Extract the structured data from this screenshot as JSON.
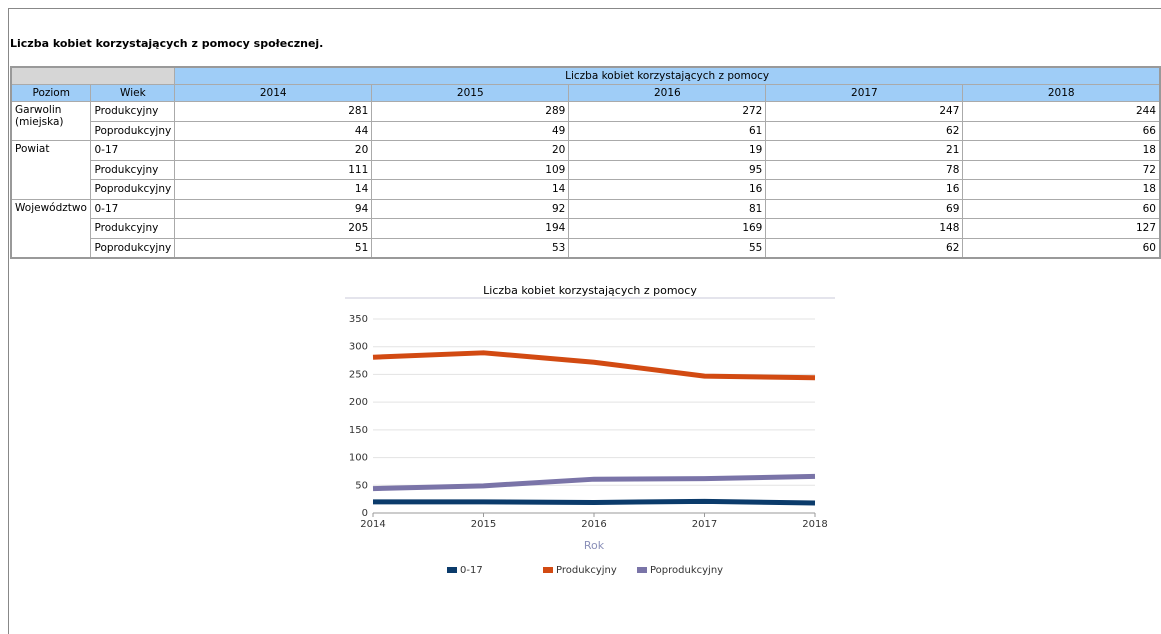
{
  "title": "Liczba kobiet korzystających z pomocy społecznej.",
  "table": {
    "headers": [
      "Poziom",
      "Wiek"
    ],
    "group_header": "Liczba kobiet korzystających z pomocy",
    "years": [
      "2014",
      "2015",
      "2016",
      "2017",
      "2018"
    ],
    "groups": [
      {
        "label": "Garwolin (miejska)",
        "rows": [
          {
            "age": "Produkcyjny",
            "values": [
              281,
              289,
              272,
              247,
              244
            ]
          },
          {
            "age": "Poprodukcyjny",
            "values": [
              44,
              49,
              61,
              62,
              66
            ]
          }
        ]
      },
      {
        "label": "Powiat",
        "rows": [
          {
            "age": "0-17",
            "values": [
              20,
              20,
              19,
              21,
              18
            ]
          },
          {
            "age": "Produkcyjny",
            "values": [
              111,
              109,
              95,
              78,
              72
            ]
          },
          {
            "age": "Poprodukcyjny",
            "values": [
              14,
              14,
              16,
              16,
              18
            ]
          }
        ]
      },
      {
        "label": "Województwo",
        "rows": [
          {
            "age": "0-17",
            "values": [
              94,
              92,
              81,
              69,
              60
            ]
          },
          {
            "age": "Produkcyjny",
            "values": [
              205,
              194,
              169,
              148,
              127
            ]
          },
          {
            "age": "Poprodukcyjny",
            "values": [
              51,
              53,
              55,
              62,
              60
            ]
          }
        ]
      }
    ]
  },
  "chart_data": {
    "type": "line",
    "title": "Liczba kobiet korzystających z pomocy",
    "x_label": "Rok",
    "x": [
      2014,
      2015,
      2016,
      2017,
      2018
    ],
    "xlim": [
      2014,
      2018
    ],
    "xticks": [
      2014,
      2015,
      2016,
      2017,
      2018
    ],
    "ylim": [
      0,
      350
    ],
    "yticks": [
      0,
      50,
      100,
      150,
      200,
      250,
      300,
      350
    ],
    "grid": true,
    "legend": "bottom",
    "series": [
      {
        "name": "0-17",
        "color": "#0b3b6b",
        "values": [
          20,
          20,
          19,
          21,
          18
        ]
      },
      {
        "name": "Produkcyjny",
        "color": "#d24a12",
        "values": [
          281,
          289,
          272,
          247,
          244
        ]
      },
      {
        "name": "Poprodukcyjny",
        "color": "#7a74a8",
        "values": [
          44,
          49,
          61,
          62,
          66
        ]
      }
    ]
  }
}
